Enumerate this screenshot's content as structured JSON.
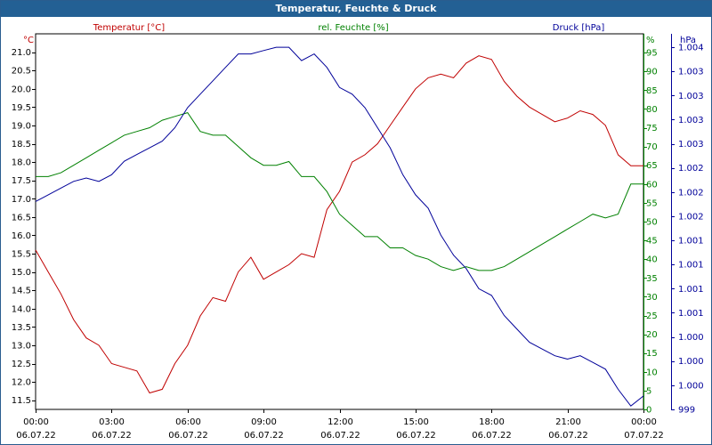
{
  "window": {
    "title": "Temperatur, Feuchte & Druck"
  },
  "colors": {
    "temperature": "#c00000",
    "humidity": "#008000",
    "pressure": "#000099",
    "title_bar": "#236094"
  },
  "chart_data": {
    "type": "line",
    "title": "Temperatur, Feuchte & Druck",
    "xlabel": "",
    "x_ticks": [
      {
        "time": "00:00",
        "date": "06.07.22"
      },
      {
        "time": "03:00",
        "date": "06.07.22"
      },
      {
        "time": "06:00",
        "date": "06.07.22"
      },
      {
        "time": "09:00",
        "date": "06.07.22"
      },
      {
        "time": "12:00",
        "date": "06.07.22"
      },
      {
        "time": "15:00",
        "date": "06.07.22"
      },
      {
        "time": "18:00",
        "date": "06.07.22"
      },
      {
        "time": "21:00",
        "date": "06.07.22"
      },
      {
        "time": "00:00",
        "date": "07.07.22"
      }
    ],
    "x_range_hours": [
      0,
      24
    ],
    "axes": {
      "temperature": {
        "label": "Temperatur [°C]",
        "unit": "°C",
        "ylim": [
          11.25,
          21.5
        ],
        "ticks": [
          "11.5",
          "12.0",
          "12.5",
          "13.0",
          "13.5",
          "14.0",
          "14.5",
          "15.0",
          "15.5",
          "16.0",
          "16.5",
          "17.0",
          "17.5",
          "18.0",
          "18.5",
          "19.0",
          "19.5",
          "20.0",
          "20.5",
          "21.0"
        ]
      },
      "humidity": {
        "label": "rel. Feuchte [%]",
        "unit": "%",
        "ylim": [
          0,
          100
        ],
        "ticks": [
          "0",
          "5",
          "10",
          "15",
          "20",
          "25",
          "30",
          "35",
          "40",
          "45",
          "50",
          "55",
          "60",
          "65",
          "70",
          "75",
          "80",
          "85",
          "90",
          "95"
        ]
      },
      "pressure": {
        "label": "Druck [hPa]",
        "unit": "hPa",
        "ylim": [
          999.0,
          1004.6
        ],
        "ticks": [
          "999",
          "1.000",
          "1.000",
          "1.000",
          "1.001",
          "1.001",
          "1.001",
          "1.001",
          "1.002",
          "1.002",
          "1.002",
          "1.003",
          "1.003",
          "1.003",
          "1.003",
          "1.004"
        ]
      }
    },
    "series": [
      {
        "name": "Temperatur [°C]",
        "axis": "temperature",
        "x": [
          0,
          0.5,
          1,
          1.5,
          2,
          2.5,
          3,
          3.5,
          4,
          4.5,
          5,
          5.5,
          6,
          6.5,
          7,
          7.5,
          8,
          8.5,
          9,
          9.5,
          10,
          10.5,
          11,
          11.5,
          12,
          12.5,
          13,
          13.5,
          14,
          14.5,
          15,
          15.5,
          16,
          16.5,
          17,
          17.5,
          18,
          18.5,
          19,
          19.5,
          20,
          20.5,
          21,
          21.5,
          22,
          22.5,
          23,
          23.5,
          24
        ],
        "values": [
          15.6,
          15.0,
          14.4,
          13.7,
          13.2,
          13.0,
          12.5,
          12.4,
          12.3,
          11.7,
          11.8,
          12.5,
          13.0,
          13.8,
          14.3,
          14.2,
          15.0,
          15.4,
          14.8,
          15.0,
          15.2,
          15.5,
          15.4,
          16.7,
          17.2,
          18.0,
          18.2,
          18.5,
          19.0,
          19.5,
          20.0,
          20.3,
          20.4,
          20.3,
          20.7,
          20.9,
          20.8,
          20.2,
          19.8,
          19.5,
          19.3,
          19.1,
          19.2,
          19.4,
          19.3,
          19.0,
          18.2,
          17.9,
          17.9
        ]
      },
      {
        "name": "rel. Feuchte [%]",
        "axis": "humidity",
        "x": [
          0,
          0.5,
          1,
          1.5,
          2,
          2.5,
          3,
          3.5,
          4,
          4.5,
          5,
          5.5,
          6,
          6.5,
          7,
          7.5,
          8,
          8.5,
          9,
          9.5,
          10,
          10.5,
          11,
          11.5,
          12,
          12.5,
          13,
          13.5,
          14,
          14.5,
          15,
          15.5,
          16,
          16.5,
          17,
          17.5,
          18,
          18.5,
          19,
          19.5,
          20,
          20.5,
          21,
          21.5,
          22,
          22.5,
          23,
          23.5,
          24
        ],
        "values": [
          62,
          62,
          63,
          65,
          67,
          69,
          71,
          73,
          74,
          75,
          77,
          78,
          79,
          74,
          73,
          73,
          70,
          67,
          65,
          65,
          66,
          62,
          62,
          58,
          52,
          49,
          46,
          46,
          43,
          43,
          41,
          40,
          38,
          37,
          38,
          37,
          37,
          38,
          40,
          42,
          44,
          46,
          48,
          50,
          52,
          51,
          52,
          60,
          60
        ]
      },
      {
        "name": "Druck [hPa]",
        "axis": "pressure",
        "x": [
          0,
          0.5,
          1,
          1.5,
          2,
          2.5,
          3,
          3.5,
          4,
          4.5,
          5,
          5.5,
          6,
          6.5,
          7,
          7.5,
          8,
          8.5,
          9,
          9.5,
          10,
          10.5,
          11,
          11.5,
          12,
          12.5,
          13,
          13.5,
          14,
          14.5,
          15,
          15.5,
          16,
          16.5,
          17,
          17.5,
          18,
          18.5,
          19,
          19.5,
          20,
          20.5,
          21,
          21.5,
          22,
          22.5,
          23,
          23.5,
          24
        ],
        "values": [
          1002.1,
          1002.2,
          1002.3,
          1002.4,
          1002.45,
          1002.4,
          1002.5,
          1002.7,
          1002.8,
          1002.9,
          1003.0,
          1003.2,
          1003.5,
          1003.7,
          1003.9,
          1004.1,
          1004.3,
          1004.3,
          1004.35,
          1004.4,
          1004.4,
          1004.2,
          1004.3,
          1004.1,
          1003.8,
          1003.7,
          1003.5,
          1003.2,
          1002.9,
          1002.5,
          1002.2,
          1002.0,
          1001.6,
          1001.3,
          1001.1,
          1000.8,
          1000.7,
          1000.4,
          1000.2,
          1000.0,
          999.9,
          999.8,
          999.75,
          999.8,
          999.7,
          999.6,
          999.3,
          999.05,
          999.2
        ]
      }
    ]
  }
}
